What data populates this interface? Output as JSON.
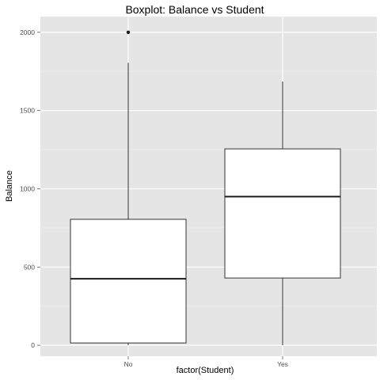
{
  "chart_data": {
    "type": "boxplot",
    "title": "Boxplot: Balance vs Student",
    "xlabel": "factor(Student)",
    "ylabel": "Balance",
    "categories": [
      "No",
      "Yes"
    ],
    "boxes": [
      {
        "category": "No",
        "min": 0,
        "q1": 15,
        "median": 425,
        "q3": 805,
        "max": 1805,
        "outliers": [
          2000
        ]
      },
      {
        "category": "Yes",
        "min": 0,
        "q1": 430,
        "median": 950,
        "q3": 1255,
        "max": 1685,
        "outliers": []
      }
    ],
    "y_ticks": [
      0,
      500,
      1000,
      1500,
      2000
    ],
    "x_ticks": [
      "No",
      "Yes"
    ],
    "ylim": [
      -70,
      2100
    ],
    "grid": true,
    "legend": "none",
    "colors": {
      "panel_background": "#e5e5e5",
      "grid_major": "#ffffff",
      "grid_minor": "#f0f0f0",
      "box_fill": "#ffffff",
      "box_stroke": "#333333",
      "median_stroke": "#1a1a1a",
      "axis_text": "#4d4d4d",
      "title_text": "#000000"
    }
  }
}
